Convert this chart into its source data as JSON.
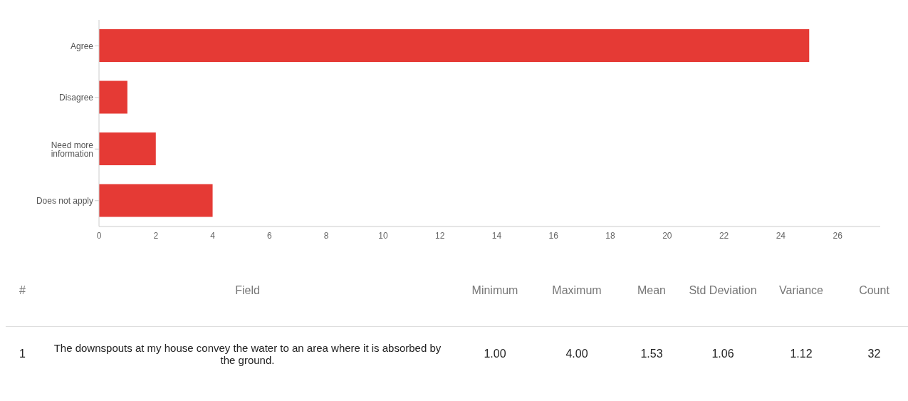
{
  "chart_data": {
    "type": "bar",
    "orientation": "horizontal",
    "categories": [
      "Agree",
      "Disagree",
      "Need more information",
      "Does not apply"
    ],
    "values": [
      25,
      1,
      2,
      4
    ],
    "color": "#e53a35",
    "xlim": [
      0,
      27.5
    ],
    "xticks": [
      0,
      2,
      4,
      6,
      8,
      10,
      12,
      14,
      16,
      18,
      20,
      22,
      24,
      26
    ],
    "grid": false,
    "annotations": [
      "#",
      "Field",
      "Minimum",
      "Maximum",
      "Mean",
      "Std Deviation",
      "Variance",
      "Count",
      "1",
      "The downspouts at my house convey the water to an area where it is absorbed by the ground.",
      "1.00",
      "4.00",
      "1.53",
      "1.06",
      "1.12",
      "32"
    ]
  }
}
